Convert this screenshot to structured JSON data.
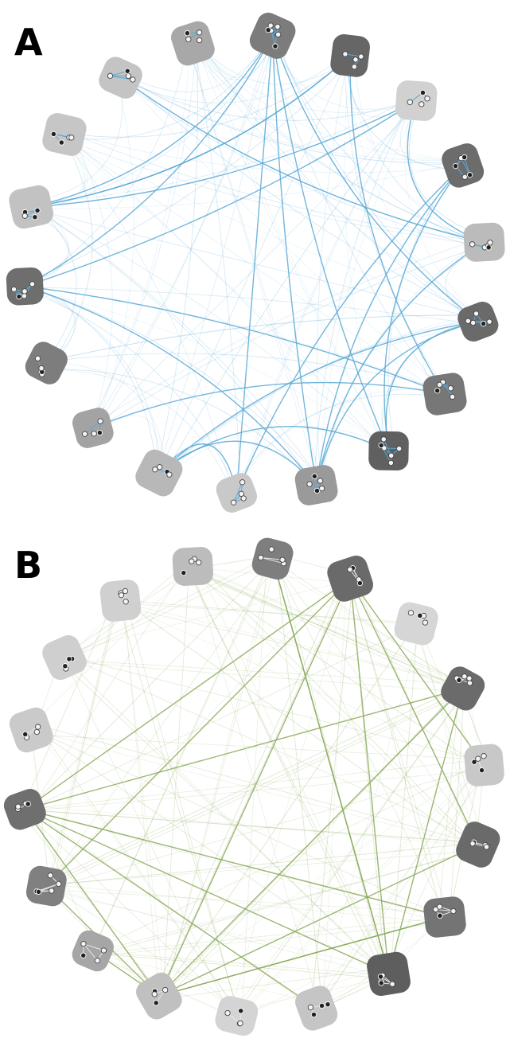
{
  "panels": [
    {
      "id": "A",
      "label": "A",
      "edge_color": "#5aa9d6",
      "edge_style": "curved",
      "clusters": [
        {
          "shade": "#c4c4c4",
          "nodes": 4
        },
        {
          "shade": "#a8a8a8",
          "nodes": 4
        },
        {
          "shade": "#7c7c7c",
          "nodes": 6
        },
        {
          "shade": "#666666",
          "nodes": 4
        },
        {
          "shade": "#d1d1d1",
          "nodes": 4
        },
        {
          "shade": "#6c6c6c",
          "nodes": 5
        },
        {
          "shade": "#bbbbbb",
          "nodes": 5
        },
        {
          "shade": "#6a6a6a",
          "nodes": 5
        },
        {
          "shade": "#777777",
          "nodes": 5
        },
        {
          "shade": "#606060",
          "nodes": 6
        },
        {
          "shade": "#9a9a9a",
          "nodes": 5
        },
        {
          "shade": "#c9c9c9",
          "nodes": 4
        },
        {
          "shade": "#b8b8b8",
          "nodes": 4
        },
        {
          "shade": "#a3a3a3",
          "nodes": 4
        },
        {
          "shade": "#7d7d7d",
          "nodes": 4
        },
        {
          "shade": "#6e6e6e",
          "nodes": 5
        },
        {
          "shade": "#c2c2c2",
          "nodes": 4
        },
        {
          "shade": "#c6c6c6",
          "nodes": 4
        }
      ],
      "strong_edges": [
        [
          2,
          15
        ],
        [
          2,
          9
        ],
        [
          2,
          10
        ],
        [
          2,
          11
        ],
        [
          3,
          8
        ],
        [
          3,
          16
        ],
        [
          5,
          9
        ],
        [
          5,
          10
        ],
        [
          5,
          11
        ],
        [
          6,
          10
        ],
        [
          7,
          2
        ],
        [
          7,
          12
        ],
        [
          8,
          15
        ],
        [
          9,
          12
        ],
        [
          10,
          12
        ],
        [
          11,
          12
        ],
        [
          15,
          4
        ],
        [
          15,
          10
        ],
        [
          16,
          2
        ],
        [
          16,
          4
        ],
        [
          16,
          3
        ],
        [
          0,
          6
        ],
        [
          13,
          8
        ],
        [
          9,
          7
        ],
        [
          10,
          7
        ],
        [
          4,
          6
        ]
      ],
      "weak_edge_count": 120
    },
    {
      "id": "B",
      "label": "B",
      "edge_color": "#8aaa5a",
      "edge_style": "straight",
      "clusters": [
        {
          "shade": "#d0d0d0",
          "nodes": 4
        },
        {
          "shade": "#bcbcbc",
          "nodes": 4
        },
        {
          "shade": "#7e7e7e",
          "nodes": 4
        },
        {
          "shade": "#6a6a6a",
          "nodes": 4
        },
        {
          "shade": "#d6d6d6",
          "nodes": 4
        },
        {
          "shade": "#6b6b6b",
          "nodes": 5
        },
        {
          "shade": "#c8c8c8",
          "nodes": 4
        },
        {
          "shade": "#6a6a6a",
          "nodes": 4
        },
        {
          "shade": "#747474",
          "nodes": 4
        },
        {
          "shade": "#5e5e5e",
          "nodes": 5
        },
        {
          "shade": "#c5c5c5",
          "nodes": 4
        },
        {
          "shade": "#d4d4d4",
          "nodes": 4
        },
        {
          "shade": "#c0c0c0",
          "nodes": 4
        },
        {
          "shade": "#a6a6a6",
          "nodes": 4
        },
        {
          "shade": "#808080",
          "nodes": 5
        },
        {
          "shade": "#6f6f6f",
          "nodes": 4
        },
        {
          "shade": "#cacaca",
          "nodes": 4
        },
        {
          "shade": "#cfcfcf",
          "nodes": 4
        }
      ],
      "strong_edges": [
        [
          15,
          9
        ],
        [
          15,
          8
        ],
        [
          15,
          12
        ],
        [
          15,
          3
        ],
        [
          15,
          10
        ],
        [
          15,
          5
        ],
        [
          12,
          3
        ],
        [
          12,
          7
        ],
        [
          12,
          5
        ],
        [
          12,
          8
        ],
        [
          14,
          12
        ],
        [
          14,
          3
        ],
        [
          3,
          9
        ],
        [
          2,
          9
        ],
        [
          3,
          7
        ],
        [
          9,
          5
        ],
        [
          13,
          12
        ],
        [
          8,
          12
        ],
        [
          3,
          6
        ],
        [
          9,
          2
        ]
      ],
      "weak_edge_count": 150
    }
  ]
}
